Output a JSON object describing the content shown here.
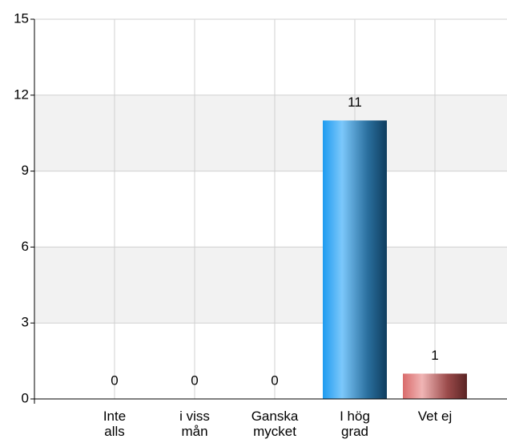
{
  "chart_data": {
    "type": "bar",
    "categories": [
      "Inte alls",
      "i viss mån",
      "Ganska mycket",
      "I hög grad",
      "Vet ej"
    ],
    "values": [
      0,
      0,
      0,
      11,
      1
    ],
    "colors": [
      "#1e9bf0",
      "#1e9bf0",
      "#1e9bf0",
      "#1e9bf0",
      "#d96b6b"
    ],
    "ylim": [
      0,
      15
    ],
    "yticks": [
      0,
      3,
      6,
      9,
      12,
      15
    ],
    "grid": true
  }
}
